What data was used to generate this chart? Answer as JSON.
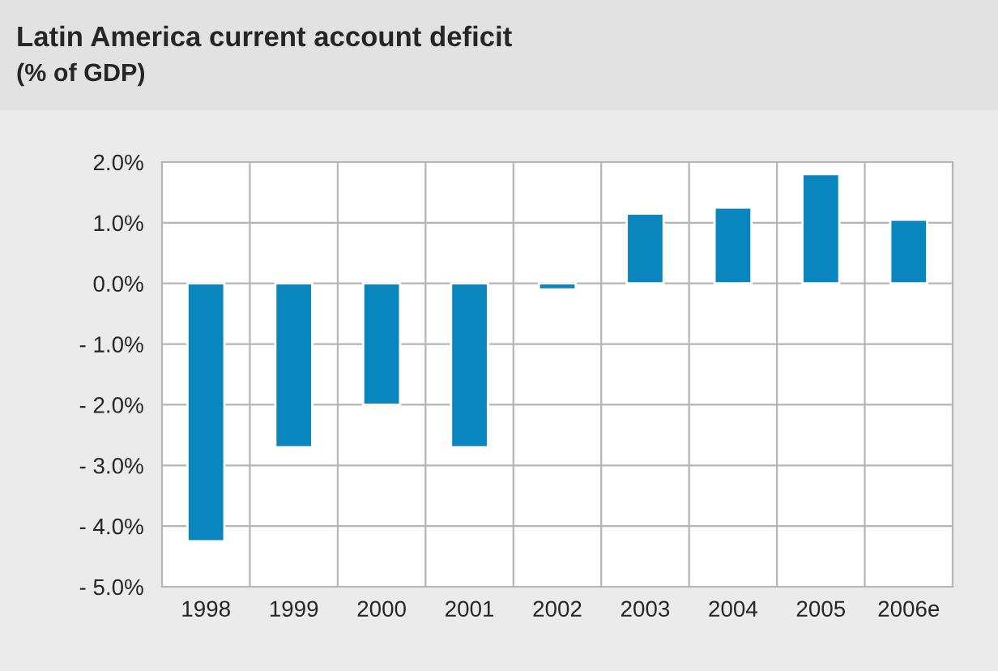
{
  "chart_data": {
    "type": "bar",
    "title": "Latin America current account deficit",
    "subtitle": "(% of GDP)",
    "categories": [
      "1998",
      "1999",
      "2000",
      "2001",
      "2002",
      "2003",
      "2004",
      "2005",
      "2006e"
    ],
    "values": [
      -4.25,
      -2.7,
      -2.0,
      -2.7,
      -0.1,
      1.15,
      1.25,
      1.8,
      1.05
    ],
    "color": "#0a86bf",
    "ylim": [
      -5,
      2
    ],
    "yticks": [
      {
        "value": 2,
        "label": "2.0%"
      },
      {
        "value": 1,
        "label": "1.0%"
      },
      {
        "value": 0,
        "label": "0.0%"
      },
      {
        "value": -1,
        "label": "- 1.0%"
      },
      {
        "value": -2,
        "label": "- 2.0%"
      },
      {
        "value": -3,
        "label": "- 3.0%"
      },
      {
        "value": -4,
        "label": "- 4.0%"
      },
      {
        "value": -5,
        "label": "- 5.0%"
      }
    ],
    "grid": true
  }
}
